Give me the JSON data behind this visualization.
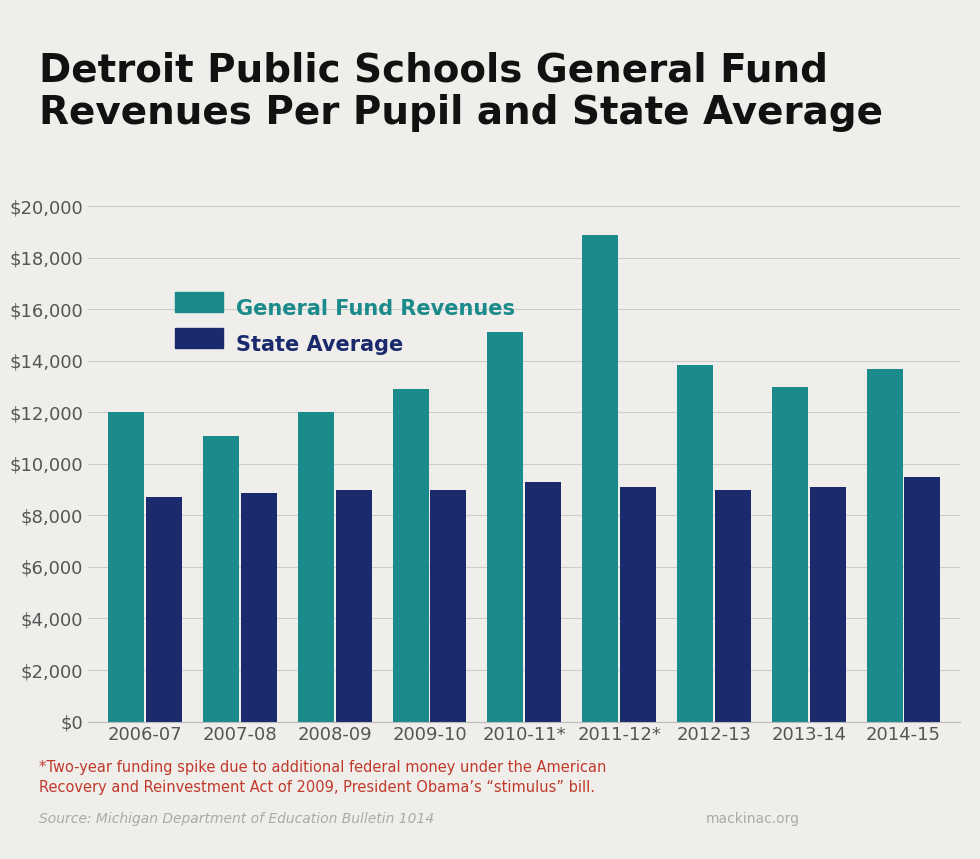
{
  "title": "Detroit Public Schools General Fund\nRevenues Per Pupil and State Average",
  "categories": [
    "2006-07",
    "2007-08",
    "2008-09",
    "2009-10",
    "2010-11*",
    "2011-12*",
    "2012-13",
    "2013-14",
    "2014-15"
  ],
  "general_fund": [
    12000,
    11100,
    12000,
    12900,
    15100,
    18900,
    13850,
    13000,
    13700
  ],
  "state_average": [
    8700,
    8850,
    9000,
    9000,
    9300,
    9100,
    9000,
    9100,
    9500
  ],
  "color_general": "#1a8a8a",
  "color_state": "#1a2a6c",
  "background_color": "#f0eeeb",
  "title_fontsize": 28,
  "legend_label_general": "General Fund Revenues",
  "legend_label_state": "State Average",
  "legend_color_general": "#1a8a8a",
  "legend_color_state": "#1a2a6c",
  "ylabel_ticks": [
    0,
    2000,
    4000,
    6000,
    8000,
    10000,
    12000,
    14000,
    16000,
    18000,
    20000
  ],
  "ylim": [
    0,
    20000
  ],
  "footnote": "*Two-year funding spike due to additional federal money under the American\nRecovery and Reinvestment Act of 2009, President Obama’s “stimulus” bill.",
  "source_text": "Source: Michigan Department of Education Bulletin 1014",
  "source_right": "mackinac.org"
}
